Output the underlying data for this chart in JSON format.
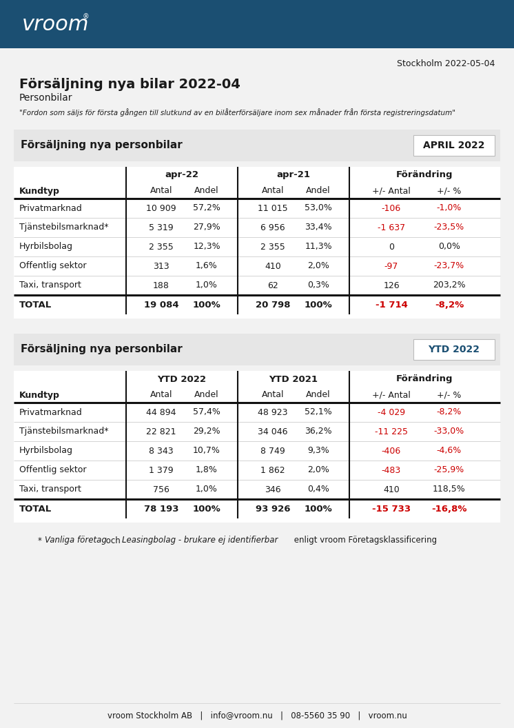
{
  "header_bg": "#1b4f72",
  "page_bg": "#f2f2f2",
  "white": "#ffffff",
  "black": "#1a1a1a",
  "red": "#cc0000",
  "blue": "#1b4f72",
  "gray_section": "#e6e6e6",
  "date_text": "Stockholm 2022-05-04",
  "main_title": "Försäljning nya bilar 2022-04",
  "subtitle": "Personbilar",
  "quote": "\"Fordon som säljs för första gången till slutkund av en bilåterförsäljare inom sex månader från första registreringsdatum\"",
  "section1_label": "Försäljning nya personbilar",
  "section1_badge": "APRIL 2022",
  "section2_label": "Försäljning nya personbilar",
  "section2_badge": "YTD 2022",
  "table1_rows": [
    [
      "Privatmarknad",
      "10 909",
      "57,2%",
      "11 015",
      "53,0%",
      "-106",
      "-1,0%"
    ],
    [
      "Tjänstebilsmarknad*",
      "5 319",
      "27,9%",
      "6 956",
      "33,4%",
      "-1 637",
      "-23,5%"
    ],
    [
      "Hyrbilsbolag",
      "2 355",
      "12,3%",
      "2 355",
      "11,3%",
      "0",
      "0,0%"
    ],
    [
      "Offentlig sektor",
      "313",
      "1,6%",
      "410",
      "2,0%",
      "-97",
      "-23,7%"
    ],
    [
      "Taxi, transport",
      "188",
      "1,0%",
      "62",
      "0,3%",
      "126",
      "203,2%"
    ]
  ],
  "table1_total": [
    "TOTAL",
    "19 084",
    "100%",
    "20 798",
    "100%",
    "-1 714",
    "-8,2%"
  ],
  "table1_red_rows": [
    0,
    1,
    3
  ],
  "table2_rows": [
    [
      "Privatmarknad",
      "44 894",
      "57,4%",
      "48 923",
      "52,1%",
      "-4 029",
      "-8,2%"
    ],
    [
      "Tjänstebilsmarknad*",
      "22 821",
      "29,2%",
      "34 046",
      "36,2%",
      "-11 225",
      "-33,0%"
    ],
    [
      "Hyrbilsbolag",
      "8 343",
      "10,7%",
      "8 749",
      "9,3%",
      "-406",
      "-4,6%"
    ],
    [
      "Offentlig sektor",
      "1 379",
      "1,8%",
      "1 862",
      "2,0%",
      "-483",
      "-25,9%"
    ],
    [
      "Taxi, transport",
      "756",
      "1,0%",
      "346",
      "0,4%",
      "410",
      "118,5%"
    ]
  ],
  "table2_total": [
    "TOTAL",
    "78 193",
    "100%",
    "93 926",
    "100%",
    "-15 733",
    "-16,8%"
  ],
  "table2_red_rows": [
    0,
    1,
    2,
    3
  ],
  "footer": "vroom Stockholm AB   |   info@vroom.nu   |   08-5560 35 90   |   vroom.nu"
}
